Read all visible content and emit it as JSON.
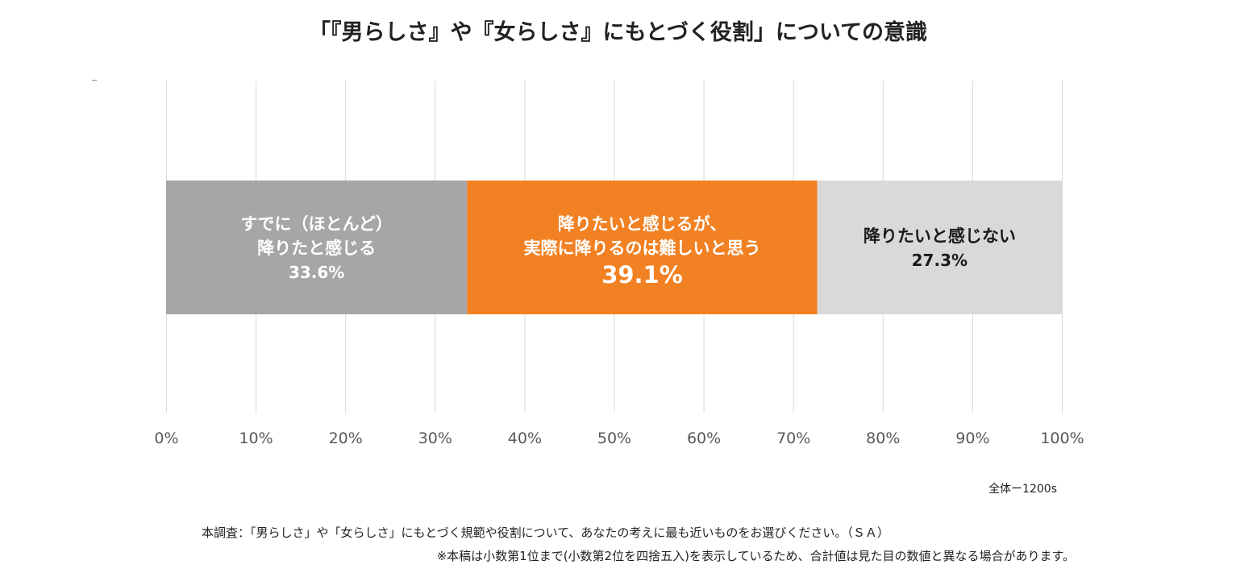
{
  "chart_data": {
    "type": "bar",
    "orientation": "horizontal",
    "stacked": true,
    "title": "「『男らしさ』や『女らしさ』にもとづく役割」についての意識",
    "xlim": [
      0,
      100
    ],
    "x_ticks": [
      "0%",
      "10%",
      "20%",
      "30%",
      "40%",
      "50%",
      "60%",
      "70%",
      "80%",
      "90%",
      "100%"
    ],
    "grid": true,
    "series": [
      {
        "name": "すでに（ほとんど）降りたと感じる",
        "label_lines": [
          "すでに（ほとんど）",
          "降りたと感じる"
        ],
        "value": 33.6,
        "value_label": "33.6%",
        "color": "#a6a6a6",
        "text_color": "#ffffff"
      },
      {
        "name": "降りたいと感じるが、実際に降りるのは難しいと思う",
        "label_lines": [
          "降りたいと感じるが、",
          "実際に降りるのは難しいと思う"
        ],
        "value": 39.1,
        "value_label": "39.1%",
        "color": "#f28123",
        "text_color": "#ffffff"
      },
      {
        "name": "降りたいと感じない",
        "label_lines": [
          "降りたいと感じない"
        ],
        "value": 27.3,
        "value_label": "27.3%",
        "color": "#d9d9d9",
        "text_color": "#1a1a1a"
      }
    ],
    "sample_size": "全体ー1200s",
    "notes": [
      "本調査：「男らしさ」や「女らしさ」にもとづく規範や役割について、あなたの考えに最も近いものをお選びください。（ＳＡ）",
      "※本稿は小数第1位まで(小数第2位を四捨五入)を表示しているため、合計値は見た目の数値と異なる場合があります。"
    ]
  }
}
